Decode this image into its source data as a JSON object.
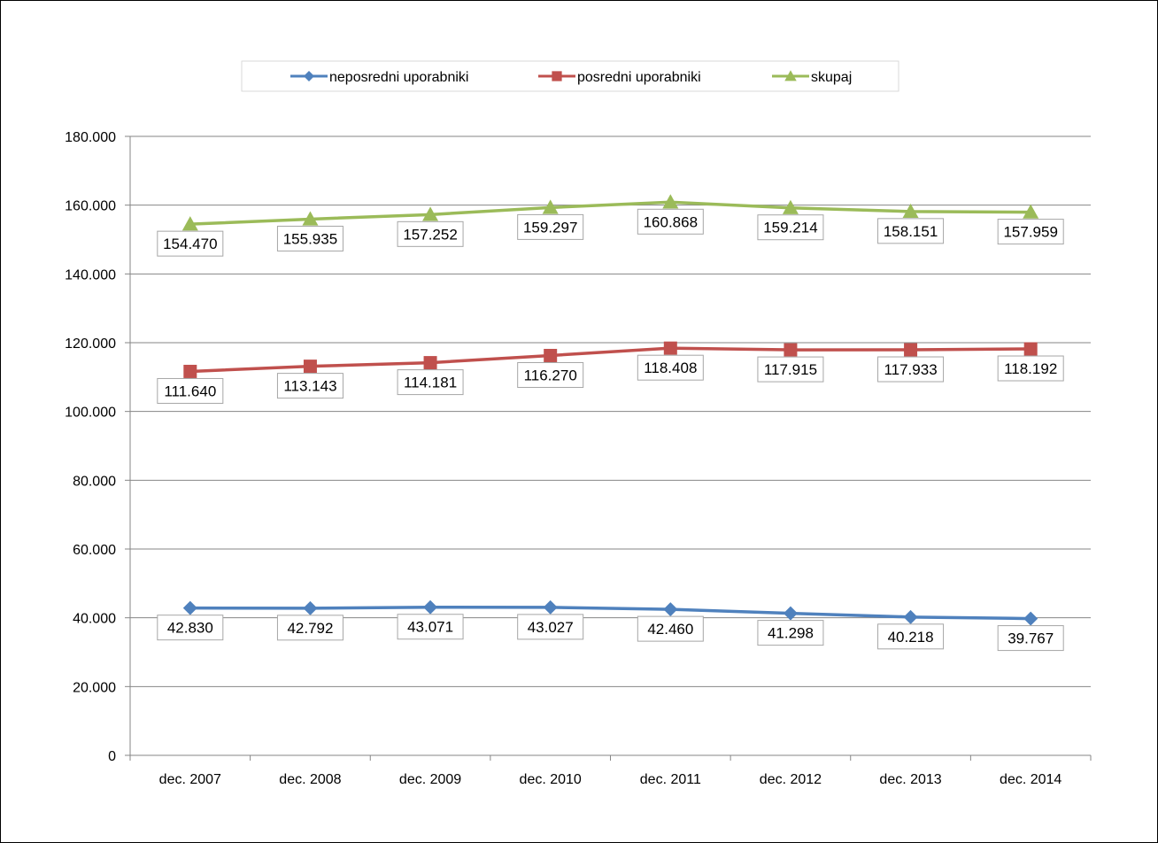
{
  "chart_data": {
    "type": "line",
    "title": "",
    "xlabel": "",
    "ylabel": "",
    "categories": [
      "dec. 2007",
      "dec. 2008",
      "dec. 2009",
      "dec. 2010",
      "dec. 2011",
      "dec. 2012",
      "dec. 2013",
      "dec. 2014"
    ],
    "ylim": [
      0,
      180000
    ],
    "yticks": [
      0,
      20000,
      40000,
      60000,
      80000,
      100000,
      120000,
      140000,
      160000,
      180000
    ],
    "ytick_labels": [
      "0",
      "20.000",
      "40.000",
      "60.000",
      "80.000",
      "100.000",
      "120.000",
      "140.000",
      "160.000",
      "180.000"
    ],
    "grid": "horizontal",
    "legend_position": "top",
    "series": [
      {
        "name": "neposredni uporabniki",
        "color": "#4F81BD",
        "marker": "diamond",
        "values": [
          42830,
          42792,
          43071,
          43027,
          42460,
          41298,
          40218,
          39767
        ],
        "labels": [
          "42.830",
          "42.792",
          "43.071",
          "43.027",
          "42.460",
          "41.298",
          "40.218",
          "39.767"
        ]
      },
      {
        "name": "posredni uporabniki",
        "color": "#C0504D",
        "marker": "square",
        "values": [
          111640,
          113143,
          114181,
          116270,
          118408,
          117915,
          117933,
          118192
        ],
        "labels": [
          "111.640",
          "113.143",
          "114.181",
          "116.270",
          "118.408",
          "117.915",
          "117.933",
          "118.192"
        ]
      },
      {
        "name": "skupaj",
        "color": "#9BBB59",
        "marker": "triangle",
        "values": [
          154470,
          155935,
          157252,
          159297,
          160868,
          159214,
          158151,
          157959
        ],
        "labels": [
          "154.470",
          "155.935",
          "157.252",
          "159.297",
          "160.868",
          "159.214",
          "158.151",
          "157.959"
        ]
      }
    ]
  }
}
